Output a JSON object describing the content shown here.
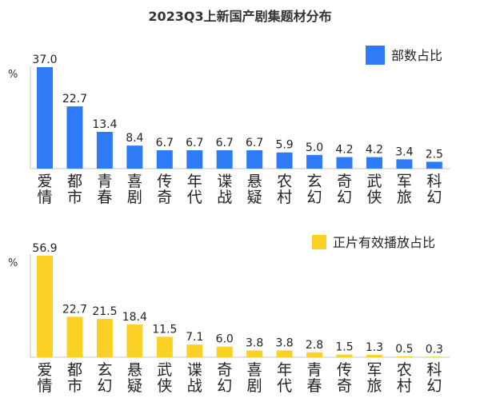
{
  "title": "2023Q3上新国产剧集题材分布",
  "chart_data": [
    {
      "type": "bar",
      "title": "2023Q3上新国产剧集题材分布",
      "legend": "部数占比",
      "legend_position": "top-right",
      "ylabel": "%",
      "color": "#2f7bf6",
      "ylim": [
        0,
        37
      ],
      "categories": [
        "爱情",
        "都市",
        "青春",
        "喜剧",
        "传奇",
        "年代",
        "谍战",
        "悬疑",
        "农村",
        "玄幻",
        "奇幻",
        "武侠",
        "军旅",
        "科幻"
      ],
      "values": [
        37.0,
        22.7,
        13.4,
        8.4,
        6.7,
        6.7,
        6.7,
        6.7,
        5.9,
        5.0,
        4.2,
        4.2,
        3.4,
        2.5
      ]
    },
    {
      "type": "bar",
      "legend": "正片有效播放占比",
      "legend_position": "top-right",
      "ylabel": "%",
      "color": "#fcd125",
      "ylim": [
        0,
        56.9
      ],
      "categories": [
        "爱情",
        "都市",
        "玄幻",
        "悬疑",
        "武侠",
        "谍战",
        "奇幻",
        "喜剧",
        "年代",
        "青春",
        "传奇",
        "军旅",
        "农村",
        "科幻"
      ],
      "values": [
        56.9,
        22.7,
        21.5,
        18.4,
        11.5,
        7.1,
        6.0,
        3.8,
        3.8,
        2.8,
        1.5,
        1.3,
        0.5,
        0.3
      ]
    }
  ]
}
